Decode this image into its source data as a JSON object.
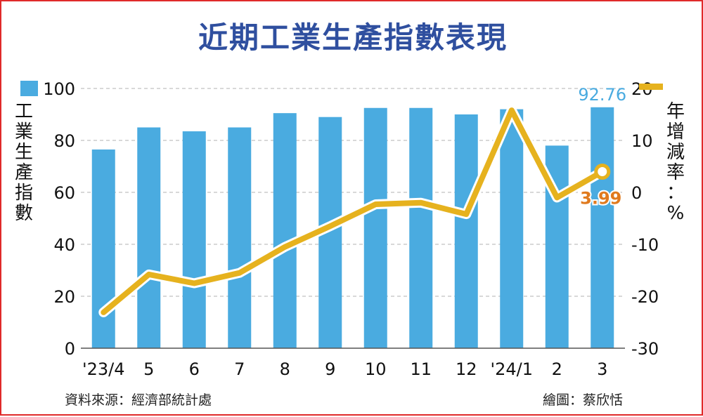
{
  "title": "近期工業生產指數表現",
  "source": "資料來源：經濟部統計處",
  "credit": "繪圖：蔡欣恬",
  "colors": {
    "bar": "#4aabe0",
    "line": "#e6b21e",
    "title": "#2f4f9f",
    "border": "#e02a2a",
    "annotation_line": "#e07a1e"
  },
  "chart_data": {
    "type": "bar",
    "categories": [
      "'23/4",
      "5",
      "6",
      "7",
      "8",
      "9",
      "10",
      "11",
      "12",
      "'24/1",
      "2",
      "3"
    ],
    "series": [
      {
        "name": "工業生產指數",
        "type": "bar",
        "axis": "left",
        "values": [
          76.5,
          85,
          83.5,
          85,
          90.5,
          89,
          92.5,
          92.5,
          90,
          92,
          78,
          92.76
        ]
      },
      {
        "name": "年增減率",
        "type": "line",
        "axis": "right",
        "values": [
          -23.1,
          -15.8,
          -17.5,
          -15.5,
          -10.5,
          -6.5,
          -2.3,
          -2.0,
          -4.2,
          15.8,
          -1.0,
          3.99
        ]
      }
    ],
    "ylabel": "工業生產指數",
    "y2label": "年增減率：%",
    "ylim": [
      0,
      100
    ],
    "y2lim": [
      -30,
      20
    ],
    "yticks": [
      0,
      20,
      40,
      60,
      80,
      100
    ],
    "y2ticks": [
      20,
      10,
      0,
      -10,
      -20,
      -30
    ],
    "annotations": {
      "last_bar": "92.76",
      "last_line": "3.99"
    },
    "grid": true,
    "legend": "top"
  }
}
